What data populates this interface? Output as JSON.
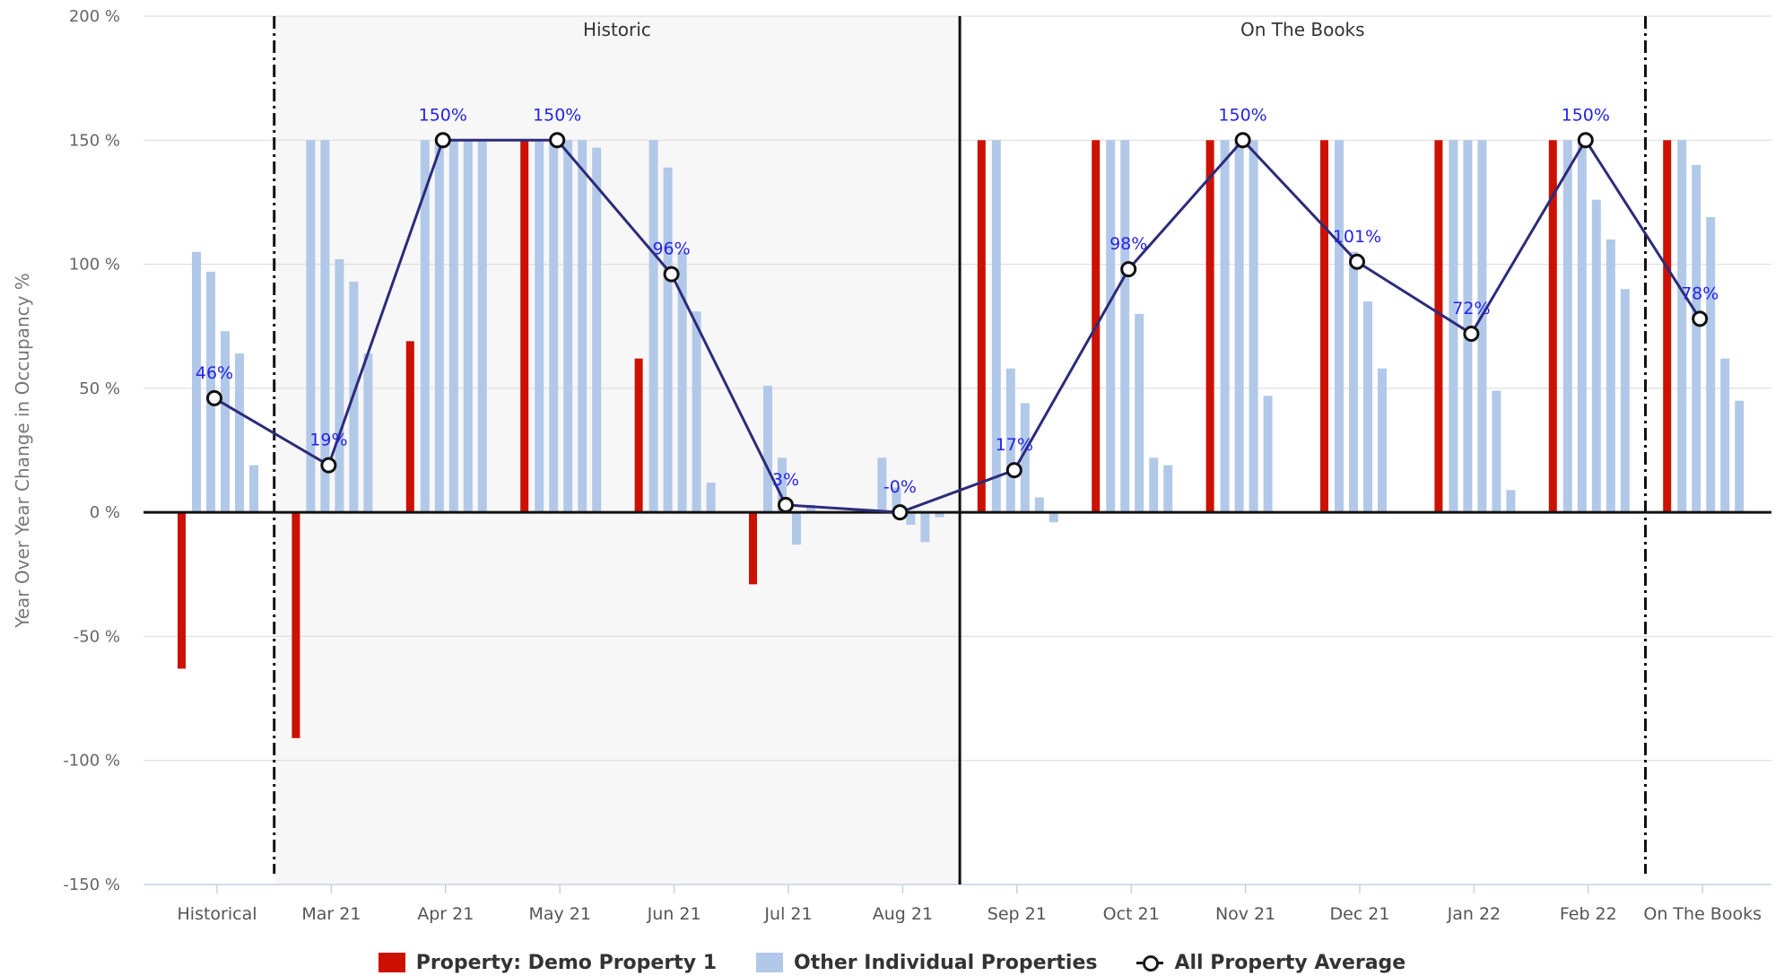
{
  "chart_data": {
    "type": "bar",
    "ylabel": "Year Over Year Change in Occupancy %",
    "ylim": [
      -150,
      200
    ],
    "yticks": [
      200,
      150,
      100,
      50,
      0,
      -50,
      -100,
      -150
    ],
    "ytick_labels": [
      "200 %",
      "150 %",
      "100 %",
      "50 %",
      "0 %",
      "-50 %",
      "-100 %",
      "-150 %"
    ],
    "categories": [
      "Historical",
      "Mar 21",
      "Apr 21",
      "May 21",
      "Jun 21",
      "Jul 21",
      "Aug 21",
      "Sep 21",
      "Oct 21",
      "Nov 21",
      "Dec 21",
      "Jan 22",
      "Feb 22",
      "On The Books"
    ],
    "bands": [
      {
        "label": "Historic",
        "from_index": 1,
        "to_index": 6,
        "shaded": true
      },
      {
        "label": "On The Books",
        "from_index": 7,
        "to_index": 12,
        "shaded": false
      }
    ],
    "series": [
      {
        "name": "Property: Demo Property 1",
        "kind": "bar",
        "color": "#cc1100",
        "values": [
          -63,
          -91,
          69,
          150,
          62,
          -29,
          null,
          150,
          150,
          150,
          150,
          150,
          150,
          150
        ]
      },
      {
        "name": "Other Individual Properties",
        "kind": "bar-group",
        "color": "#b2c8e8",
        "values": [
          [
            105,
            97,
            73,
            64,
            19
          ],
          [
            150,
            150,
            102,
            93,
            64
          ],
          [
            150,
            150,
            150,
            150,
            150
          ],
          [
            150,
            150,
            150,
            150,
            147
          ],
          [
            150,
            139,
            105,
            81,
            12
          ],
          [
            51,
            22,
            -13,
            3,
            0
          ],
          [
            22,
            10,
            -5,
            -12,
            -2
          ],
          [
            150,
            58,
            44,
            6,
            -4
          ],
          [
            150,
            150,
            80,
            22,
            19
          ],
          [
            150,
            150,
            150,
            47,
            0
          ],
          [
            150,
            105,
            85,
            58,
            0
          ],
          [
            150,
            150,
            150,
            49,
            9
          ],
          [
            150,
            150,
            126,
            110,
            90
          ],
          [
            150,
            140,
            119,
            62,
            45
          ]
        ]
      },
      {
        "name": "All Property Average",
        "kind": "line",
        "color": "#2c2c7a",
        "values": [
          46,
          19,
          150,
          150,
          96,
          3,
          0,
          17,
          98,
          150,
          101,
          72,
          150,
          78
        ],
        "labels": [
          "46%",
          "19%",
          "150%",
          "150%",
          "96%",
          "3%",
          "-0%",
          "17%",
          "98%",
          "150%",
          "101%",
          "72%",
          "150%",
          "78%"
        ]
      }
    ],
    "legend_position": "bottom-center",
    "grid": true
  }
}
